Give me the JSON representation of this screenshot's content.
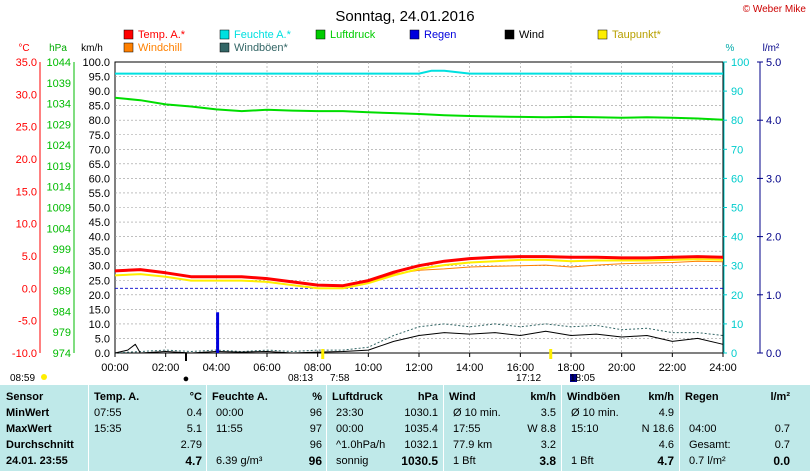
{
  "title": "Sonntag, 24.01.2016",
  "copyright": "© Weber Mike",
  "units": {
    "celsius": "°C",
    "hpa": "hPa",
    "kmh": "km/h",
    "percent": "%",
    "lm2": "l/m²"
  },
  "legend": [
    {
      "label": "Temp. A.*",
      "color": "#ff0000"
    },
    {
      "label": "Feuchte A.*",
      "color": "#00e0e0"
    },
    {
      "label": "Luftdruck",
      "color": "#00cc00"
    },
    {
      "label": "Regen",
      "color": "#0000dd"
    },
    {
      "label": "Wind",
      "color": "#000000"
    },
    {
      "label": "Taupunkt*",
      "color": "#ffee00"
    },
    {
      "label": "Windchill",
      "color": "#ff8000"
    },
    {
      "label": "Windböen*",
      "color": "#336666"
    }
  ],
  "markers": {
    "sunrise_left": "08:59",
    "moon_left": "●",
    "dawn": "08:13",
    "sunrise": "7:58",
    "sunset": "17:12",
    "dusk": "18:05"
  },
  "chart_data": {
    "type": "line",
    "x_ticks": [
      "00:00",
      "02:00",
      "04:00",
      "06:00",
      "08:00",
      "10:00",
      "12:00",
      "14:00",
      "16:00",
      "18:00",
      "20:00",
      "22:00",
      "24:00"
    ],
    "xlim": [
      0,
      24
    ],
    "axes": {
      "temp_c": {
        "ticks": [
          "35.0",
          "30.0",
          "25.0",
          "20.0",
          "15.0",
          "10.0",
          "5.0",
          "0.0",
          "-5.0",
          "-10.0"
        ],
        "range": [
          -10,
          35
        ],
        "color": "#ff0000"
      },
      "hpa": {
        "ticks": [
          "1044",
          "1039",
          "1034",
          "1029",
          "1024",
          "1019",
          "1014",
          "1009",
          "1004",
          "999",
          "994",
          "989",
          "984",
          "979",
          "974"
        ],
        "range": [
          974,
          1044
        ],
        "color": "#00bb00"
      },
      "kmh": {
        "ticks": [
          "100.0",
          "95.0",
          "90.0",
          "85.0",
          "80.0",
          "75.0",
          "70.0",
          "65.0",
          "60.0",
          "55.0",
          "50.0",
          "45.0",
          "40.0",
          "35.0",
          "30.0",
          "25.0",
          "20.0",
          "15.0",
          "10.0",
          "5.0",
          "0.0"
        ],
        "range": [
          0,
          100
        ],
        "color": "#000000"
      },
      "percent": {
        "ticks": [
          "100",
          "90",
          "80",
          "70",
          "60",
          "50",
          "40",
          "30",
          "20",
          "10",
          "0"
        ],
        "range": [
          0,
          100
        ],
        "color": "#00cccc"
      },
      "rain": {
        "ticks": [
          "5.0",
          "4.0",
          "3.0",
          "2.0",
          "1.0",
          "0.0"
        ],
        "range": [
          0,
          5
        ],
        "color": "#0000aa"
      }
    },
    "series": [
      {
        "name": "Temp. A.*",
        "axis": "temp_c",
        "color": "#ff0000",
        "width": 3,
        "x": [
          0,
          1,
          2,
          3,
          4,
          5,
          6,
          7,
          8,
          9,
          10,
          11,
          12,
          13,
          14,
          15,
          16,
          17,
          18,
          19,
          20,
          21,
          22,
          23,
          24
        ],
        "y": [
          2.7,
          2.9,
          2.4,
          1.8,
          1.8,
          1.8,
          1.5,
          1.0,
          0.5,
          0.4,
          1.2,
          2.5,
          3.5,
          4.2,
          4.6,
          4.8,
          4.9,
          4.9,
          4.8,
          4.8,
          4.7,
          4.7,
          4.8,
          4.9,
          4.8
        ]
      },
      {
        "name": "Taupunkt*",
        "axis": "temp_c",
        "color": "#ffee00",
        "width": 2,
        "x": [
          0,
          1,
          2,
          3,
          4,
          5,
          6,
          7,
          8,
          9,
          10,
          11,
          12,
          13,
          14,
          15,
          16,
          17,
          18,
          19,
          20,
          21,
          22,
          23,
          24
        ],
        "y": [
          2.0,
          2.2,
          1.8,
          1.2,
          1.2,
          1.2,
          1.0,
          0.5,
          0.0,
          0.0,
          0.8,
          2.0,
          3.0,
          3.6,
          4.0,
          4.2,
          4.4,
          4.4,
          4.2,
          4.3,
          4.3,
          4.3,
          4.4,
          4.5,
          4.4
        ]
      },
      {
        "name": "Windchill",
        "axis": "temp_c",
        "color": "#ff8000",
        "width": 1,
        "x": [
          0,
          1,
          2,
          3,
          4,
          5,
          6,
          7,
          8,
          9,
          10,
          11,
          12,
          13,
          14,
          15,
          16,
          17,
          18,
          19,
          20,
          21,
          22,
          23,
          24
        ],
        "y": [
          2.6,
          2.8,
          2.3,
          1.7,
          1.7,
          1.7,
          1.4,
          0.9,
          0.4,
          0.4,
          1.0,
          2.2,
          2.8,
          3.0,
          3.3,
          3.4,
          3.5,
          3.6,
          3.3,
          3.6,
          3.8,
          3.9,
          4.0,
          4.2,
          4.1
        ]
      },
      {
        "name": "Feuchte A.*",
        "axis": "percent",
        "color": "#00e0e0",
        "width": 2,
        "x": [
          0,
          2,
          4,
          6,
          8,
          10,
          12,
          12.5,
          13,
          14,
          16,
          18,
          20,
          22,
          24
        ],
        "y": [
          96,
          96,
          96,
          96,
          96,
          96,
          96,
          97,
          97,
          96,
          96,
          96,
          96,
          96,
          96
        ]
      },
      {
        "name": "Luftdruck",
        "axis": "hpa",
        "color": "#00dd00",
        "width": 2,
        "x": [
          0,
          1,
          2,
          3,
          4,
          5,
          6,
          7,
          8,
          9,
          10,
          11,
          12,
          13,
          14,
          15,
          16,
          17,
          18,
          19,
          20,
          21,
          22,
          23,
          24
        ],
        "y": [
          1035.4,
          1034.8,
          1033.8,
          1033.3,
          1032.6,
          1032.2,
          1032.5,
          1032.3,
          1032.2,
          1032.2,
          1031.9,
          1031.7,
          1031.5,
          1031.2,
          1031.0,
          1030.9,
          1030.8,
          1030.7,
          1030.8,
          1030.7,
          1030.6,
          1030.7,
          1030.6,
          1030.4,
          1030.1
        ]
      },
      {
        "name": "Wind",
        "axis": "kmh",
        "color": "#000000",
        "width": 1,
        "x": [
          0,
          0.5,
          0.8,
          1,
          2,
          3,
          4,
          5,
          6,
          7,
          8,
          9,
          10,
          11,
          12,
          13,
          14,
          15,
          16,
          17,
          18,
          19,
          20,
          21,
          22,
          23,
          24
        ],
        "y": [
          0,
          1,
          3,
          0,
          0.5,
          0,
          0.5,
          0.3,
          0.5,
          0,
          0.3,
          0.5,
          1,
          4,
          6,
          7,
          6.5,
          7,
          6,
          7.5,
          6,
          6.5,
          5.5,
          6,
          4,
          5,
          3
        ]
      },
      {
        "name": "Windböen*",
        "axis": "kmh",
        "color": "#336666",
        "width": 1,
        "dashed": true,
        "x": [
          0,
          1,
          2,
          3,
          4,
          5,
          6,
          7,
          8,
          9,
          10,
          11,
          12,
          13,
          14,
          15,
          16,
          17,
          18,
          19,
          20,
          21,
          22,
          23,
          24
        ],
        "y": [
          0,
          0.5,
          1,
          0.5,
          1,
          0.5,
          1,
          0.5,
          1,
          1,
          2,
          6,
          9,
          10,
          9,
          10,
          9,
          10,
          9,
          9.5,
          8,
          8.5,
          7,
          7,
          6
        ]
      }
    ],
    "rain_bars": [
      {
        "x": 4.05,
        "y": 0.7
      }
    ],
    "dew_markers": [
      {
        "x": 8.2
      },
      {
        "x": 17.2
      }
    ]
  },
  "table": {
    "headers": [
      "Sensor",
      "Temp. A.",
      "°C",
      "Feuchte A.",
      "%",
      "Luftdruck",
      "hPa",
      "Wind",
      "km/h",
      "Windböen",
      "km/h",
      "Regen",
      "l/m²"
    ],
    "rows": [
      {
        "label": "MinWert",
        "t_time": "07:55",
        "t_val": "0.4",
        "h_time": "00:00",
        "h_val": "96",
        "p_time": "23:30",
        "p_val": "1030.1",
        "w_label": "Ø 10 min.",
        "w_val": "3.5",
        "g_label": "Ø 10 min.",
        "g_val": "4.9",
        "r_label": "",
        "r_val": ""
      },
      {
        "label": "MaxWert",
        "t_time": "15:35",
        "t_val": "5.1",
        "h_time": "11:55",
        "h_val": "97",
        "p_time": "00:00",
        "p_val": "1035.4",
        "w_label": "17:55",
        "w_val": "W 8.8",
        "g_label": "15:10",
        "g_val": "N 18.6",
        "r_label": "04:00",
        "r_val": "0.7"
      },
      {
        "label": "Durchschnitt",
        "t_time": "",
        "t_val": "2.79",
        "h_time": "",
        "h_val": "96",
        "p_time": "^1.0hPa/h",
        "p_val": "1032.1",
        "w_label": "77.9 km",
        "w_val": "3.2",
        "g_label": "",
        "g_val": "4.6",
        "r_label": "Gesamt:",
        "r_val": "0.7"
      },
      {
        "label": "24.01. 23:55",
        "t_time": "",
        "t_val": "4.7",
        "h_time": "6.39 g/m³",
        "h_val": "96",
        "p_time": "sonnig",
        "p_val": "1030.5",
        "w_label": "1 Bft",
        "w_val": "3.8",
        "g_label": "1 Bft",
        "g_val": "4.7",
        "r_label": "0.7 l/m²",
        "r_val": "0.0"
      }
    ]
  }
}
